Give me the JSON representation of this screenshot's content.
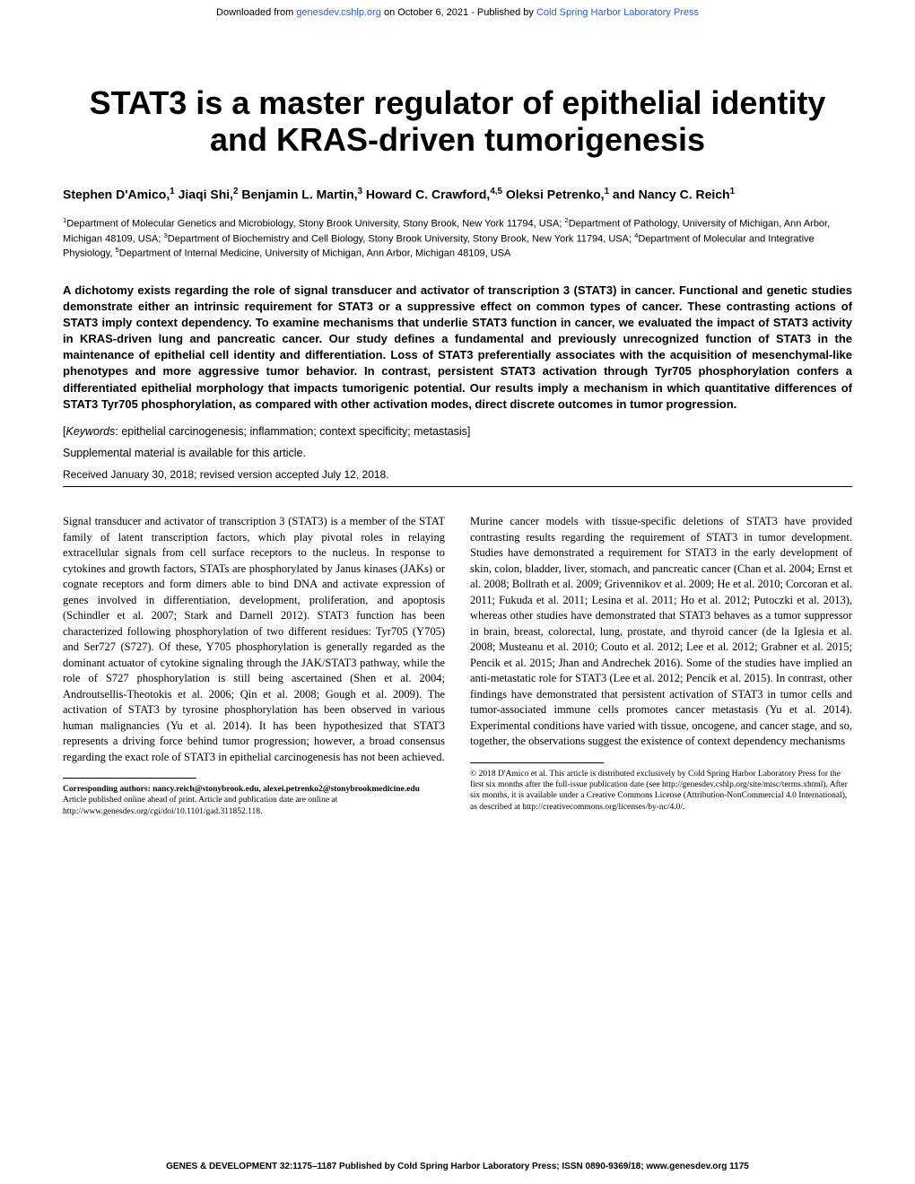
{
  "header": {
    "prefix": "Downloaded from ",
    "link1": "genesdev.cshlp.org",
    "middle": " on October 6, 2021 - Published by ",
    "link2": "Cold Spring Harbor Laboratory Press"
  },
  "title": "STAT3 is a master regulator of epithelial identity and KRAS-driven tumorigenesis",
  "authors_html": "Stephen D'Amico,<sup>1</sup> Jiaqi Shi,<sup>2</sup> Benjamin L. Martin,<sup>3</sup> Howard C. Crawford,<sup>4,5</sup> Oleksi Petrenko,<sup>1</sup> and Nancy C. Reich<sup>1</sup>",
  "affiliations_html": "<sup>1</sup>Department of Molecular Genetics and Microbiology, Stony Brook University, Stony Brook, New York 11794, USA; <sup>2</sup>Department of Pathology, University of Michigan, Ann Arbor, Michigan 48109, USA; <sup>3</sup>Department of Biochemistry and Cell Biology, Stony Brook University, Stony Brook, New York 11794, USA; <sup>4</sup>Department of Molecular and Integrative Physiology, <sup>5</sup>Department of Internal Medicine, University of Michigan, Ann Arbor, Michigan 48109, USA",
  "abstract": "A dichotomy exists regarding the role of signal transducer and activator of transcription 3 (STAT3) in cancer. Functional and genetic studies demonstrate either an intrinsic requirement for STAT3 or a suppressive effect on common types of cancer. These contrasting actions of STAT3 imply context dependency. To examine mechanisms that underlie STAT3 function in cancer, we evaluated the impact of STAT3 activity in KRAS-driven lung and pancreatic cancer. Our study defines a fundamental and previously unrecognized function of STAT3 in the maintenance of epithelial cell identity and differentiation. Loss of STAT3 preferentially associates with the acquisition of mesenchymal-like phenotypes and more aggressive tumor behavior. In contrast, persistent STAT3 activation through Tyr705 phosphorylation confers a differentiated epithelial morphology that impacts tumorigenic potential. Our results imply a mechanism in which quantitative differences of STAT3 Tyr705 phosphorylation, as compared with other activation modes, direct discrete outcomes in tumor progression.",
  "keywords_label": "Keywords",
  "keywords": "epithelial carcinogenesis; inflammation; context specificity; metastasis",
  "supplemental": "Supplemental material is available for this article.",
  "received": "Received January 30, 2018; revised version accepted July 12, 2018.",
  "body": {
    "col1_p1": "Signal transducer and activator of transcription 3 (STAT3) is a member of the STAT family of latent transcription factors, which play pivotal roles in relaying extracellular signals from cell surface receptors to the nucleus. In response to cytokines and growth factors, STATs are phosphorylated by Janus kinases (JAKs) or cognate receptors and form dimers able to bind DNA and activate expression of genes involved in differentiation, development, proliferation, and apoptosis (Schindler et al. 2007; Stark and Darnell 2012). STAT3 function has been characterized following phosphorylation of two different residues: Tyr705 (Y705) and Ser727 (S727). Of these, Y705 phosphorylation is generally regarded as the dominant actuator of cytokine signaling through the JAK/STAT3 pathway, while the role of S727 phosphorylation is still being ascertained (Shen et al. 2004; Androutsellis-Theotokis et al. 2006; Qin et al. 2008; Gough et al. 2009). The activation of STAT3 by tyrosine phosphorylation has been observed in various human malignancies (Yu et al. 2014). It has been hypothesized that STAT3 represents a driving force behind tumor progression; however, a broad consensus regarding the exact role of STAT3 in epithelial carcinogenesis has not been achieved.",
    "col2_p1": "Murine cancer models with tissue-specific deletions of STAT3 have provided contrasting results regarding the requirement of STAT3 in tumor development. Studies have demonstrated a requirement for STAT3 in the early development of skin, colon, bladder, liver, stomach, and pancreatic cancer (Chan et al. 2004; Ernst et al. 2008; Bollrath et al. 2009; Grivennikov et al. 2009; He et al. 2010; Corcoran et al. 2011; Fukuda et al. 2011; Lesina et al. 2011; Ho et al. 2012; Putoczki et al. 2013), whereas other studies have demonstrated that STAT3 behaves as a tumor suppressor in brain, breast, colorectal, lung, prostate, and thyroid cancer (de la Iglesia et al. 2008; Musteanu et al. 2010; Couto et al. 2012; Lee et al. 2012; Grabner et al. 2015; Pencik et al. 2015; Jhan and Andrechek 2016). Some of the studies have implied an anti-metastatic role for STAT3 (Lee et al. 2012; Pencik et al. 2015). In contrast, other findings have demonstrated that persistent activation of STAT3 in tumor cells and tumor-associated immune cells promotes cancer metastasis (Yu et al. 2014). Experimental conditions have varied with tissue, oncogene, and cancer stage, and so, together, the observations suggest the existence of context dependency mechanisms"
  },
  "footnotes": {
    "left_corresponding_label": "Corresponding authors: ",
    "left_corresponding": "nancy.reich@stonybrook.edu, alexei.petrenko2@stonybrookmedicine.edu",
    "left_article": "Article published online ahead of print. Article and publication date are online at http://www.genesdev.org/cgi/doi/10.1101/gad.311852.118.",
    "right": "© 2018 D'Amico et al.   This article is distributed exclusively by Cold Spring Harbor Laboratory Press for the first six months after the full-issue publication date (see http://genesdev.cshlp.org/site/misc/terms.xhtml). After six months, it is available under a Creative Commons License (Attribution-NonCommercial 4.0 International), as described at http://creativecommons.org/licenses/by-nc/4.0/."
  },
  "footer": "GENES & DEVELOPMENT 32:1175–1187 Published by Cold Spring Harbor Laboratory Press; ISSN 0890-9369/18; www.genesdev.org    1175",
  "colors": {
    "text": "#000000",
    "link": "#2b5cd4",
    "background": "#ffffff"
  },
  "typography": {
    "title_fontsize": 36,
    "author_fontsize": 14,
    "affiliation_fontsize": 11,
    "abstract_fontsize": 13,
    "body_fontsize": 12.5,
    "footnote_fontsize": 9.5,
    "footer_fontsize": 10
  }
}
